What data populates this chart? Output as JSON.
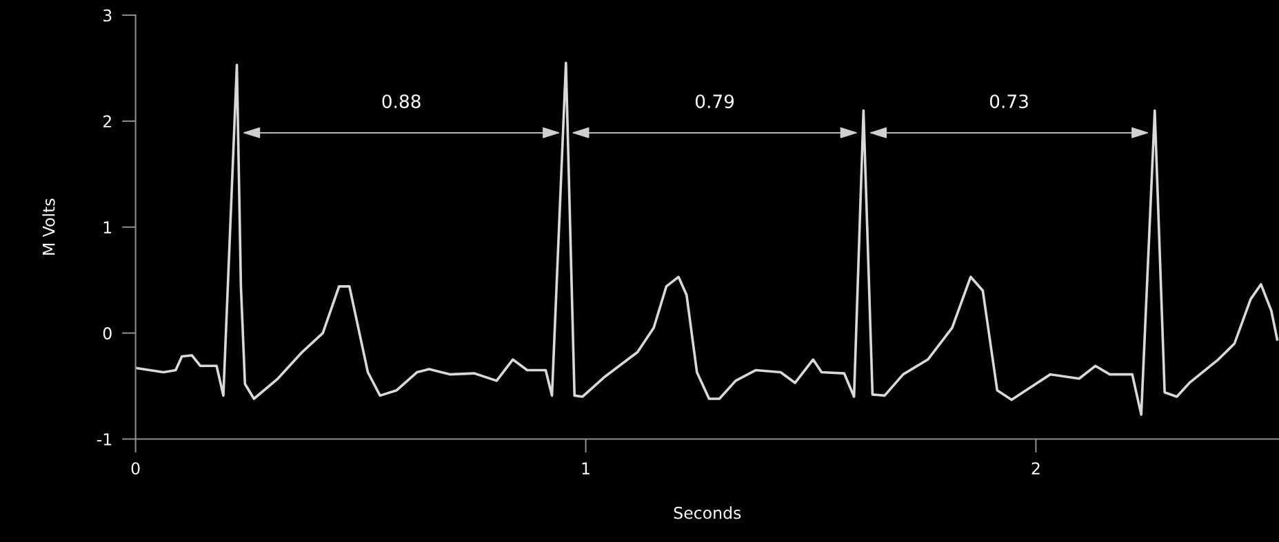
{
  "chart_data": {
    "type": "line",
    "xlabel": "Seconds",
    "ylabel": "M Volts",
    "x": [
      0,
      0.062,
      0.089,
      0.103,
      0.125,
      0.144,
      0.18,
      0.195,
      0.225,
      0.234,
      0.243,
      0.263,
      0.316,
      0.37,
      0.416,
      0.452,
      0.475,
      0.516,
      0.543,
      0.58,
      0.625,
      0.652,
      0.698,
      0.752,
      0.802,
      0.838,
      0.87,
      0.911,
      0.925,
      0.956,
      0.975,
      0.993,
      1.043,
      1.115,
      1.151,
      1.179,
      1.206,
      1.224,
      1.247,
      1.274,
      1.297,
      1.333,
      1.378,
      1.433,
      1.465,
      1.505,
      1.524,
      1.574,
      1.596,
      1.617,
      1.637,
      1.664,
      1.705,
      1.76,
      1.814,
      1.855,
      1.882,
      1.914,
      1.946,
      1.978,
      2.032,
      2.096,
      2.132,
      2.164,
      2.214,
      2.234,
      2.264,
      2.286,
      2.313,
      2.341,
      2.405,
      2.441,
      2.477,
      2.5,
      2.523,
      2.536
    ],
    "series": [
      {
        "color": "#d9d9d9",
        "values": [
          -0.33,
          -0.37,
          -0.35,
          -0.22,
          -0.21,
          -0.31,
          -0.31,
          -0.59,
          2.53,
          0.44,
          -0.48,
          -0.62,
          -0.43,
          -0.18,
          0.0,
          0.44,
          0.44,
          -0.37,
          -0.59,
          -0.54,
          -0.37,
          -0.34,
          -0.39,
          -0.38,
          -0.45,
          -0.25,
          -0.35,
          -0.35,
          -0.59,
          2.55,
          -0.59,
          -0.6,
          -0.41,
          -0.18,
          0.05,
          0.44,
          0.53,
          0.36,
          -0.37,
          -0.62,
          -0.62,
          -0.45,
          -0.35,
          -0.37,
          -0.47,
          -0.25,
          -0.37,
          -0.38,
          -0.6,
          2.1,
          -0.58,
          -0.59,
          -0.39,
          -0.25,
          0.05,
          0.53,
          0.4,
          -0.54,
          -0.63,
          -0.54,
          -0.39,
          -0.43,
          -0.31,
          -0.39,
          -0.39,
          -0.77,
          2.1,
          -0.56,
          -0.6,
          -0.47,
          -0.25,
          -0.1,
          0.32,
          0.46,
          0.21,
          -0.06
        ]
      }
    ],
    "xlim": [
      0,
      2.54
    ],
    "ylim": [
      -1,
      3
    ],
    "xticks": [
      0,
      1,
      2
    ],
    "yticks": [
      -1,
      0,
      1,
      2,
      3
    ],
    "annotations": [
      "0.88",
      "0.79",
      "0.73"
    ]
  }
}
